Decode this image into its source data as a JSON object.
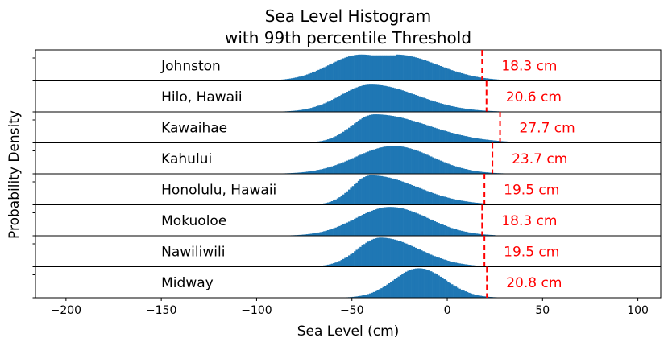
{
  "chart_data": {
    "type": "histogram",
    "title": "Sea Level Histogram",
    "subtitle": "with 99th percentile Threshold",
    "xlabel": "Sea Level (cm)",
    "ylabel": "Probability Density",
    "xlim": [
      -216,
      112
    ],
    "xticks": [
      -200,
      -150,
      -100,
      -50,
      0,
      50,
      100
    ],
    "bar_color": "#1f77b4",
    "threshold_color": "#ff0000",
    "grid": false,
    "legend": "none",
    "panels": [
      {
        "station": "Johnston",
        "threshold": 18.3,
        "threshold_label": "18.3 cm",
        "min": -95,
        "max": 27,
        "mode": -45,
        "mode2": -27,
        "sd_left": 17,
        "sd_right": 22,
        "peak_fill": 0.85
      },
      {
        "station": "Hilo, Hawaii",
        "threshold": 20.6,
        "threshold_label": "20.6 cm",
        "min": -97,
        "max": 27,
        "mode": -40,
        "sd_left": 16,
        "sd_right": 24,
        "peak_fill": 0.88
      },
      {
        "station": "Kawaihae",
        "threshold": 27.7,
        "threshold_label": "27.7 cm",
        "min": -80,
        "max": 37,
        "mode": -38,
        "sd_left": 12,
        "sd_right": 28,
        "peak_fill": 0.92
      },
      {
        "station": "Kahului",
        "threshold": 23.7,
        "threshold_label": "23.7 cm",
        "min": -90,
        "max": 35,
        "mode": -28,
        "sd_left": 20,
        "sd_right": 20,
        "peak_fill": 0.9
      },
      {
        "station": "Honolulu, Hawaii",
        "threshold": 19.5,
        "threshold_label": "19.5 cm",
        "min": -72,
        "max": 35,
        "mode": -40,
        "sd_left": 10,
        "sd_right": 24,
        "peak_fill": 0.95
      },
      {
        "station": "Mokuoloe",
        "threshold": 18.3,
        "threshold_label": "18.3 cm",
        "min": -92,
        "max": 25,
        "mode": -30,
        "sd_left": 18,
        "sd_right": 20,
        "peak_fill": 0.93
      },
      {
        "station": "Nawiliwili",
        "threshold": 19.5,
        "threshold_label": "19.5 cm",
        "min": -72,
        "max": 28,
        "mode": -35,
        "sd_left": 12,
        "sd_right": 20,
        "peak_fill": 0.94
      },
      {
        "station": "Midway",
        "threshold": 20.8,
        "threshold_label": "20.8 cm",
        "min": -58,
        "max": 37,
        "mode": -15,
        "sd_left": 13,
        "sd_right": 14,
        "peak_fill": 0.95
      }
    ]
  }
}
